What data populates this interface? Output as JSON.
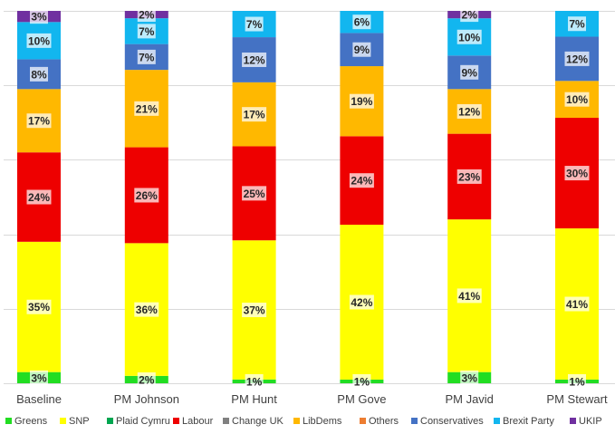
{
  "chart_data": {
    "type": "bar",
    "stacked": true,
    "title": "",
    "xlabel": "",
    "ylabel": "",
    "ylim": [
      0,
      100
    ],
    "grid": true,
    "legend_position": "bottom",
    "categories": [
      "Baseline",
      "PM Johnson",
      "PM Hunt",
      "PM Gove",
      "PM Javid",
      "PM Stewart"
    ],
    "series": [
      {
        "name": "Greens",
        "color": "#22DD22",
        "values": [
          3,
          2,
          1,
          1,
          3,
          1
        ]
      },
      {
        "name": "SNP",
        "color": "#FFFF00",
        "values": [
          35,
          36,
          37,
          42,
          41,
          41
        ]
      },
      {
        "name": "Plaid Cymru",
        "color": "#00A650",
        "values": [
          0,
          0,
          0,
          0,
          0,
          0
        ]
      },
      {
        "name": "Labour",
        "color": "#EE0000",
        "values": [
          24,
          26,
          25,
          24,
          23,
          30
        ]
      },
      {
        "name": "Change UK",
        "color": "#808080",
        "values": [
          0,
          0,
          0,
          0,
          0,
          0
        ]
      },
      {
        "name": "LibDems",
        "color": "#FFB800",
        "values": [
          17,
          21,
          17,
          19,
          12,
          10
        ]
      },
      {
        "name": "Others",
        "color": "#ED7D31",
        "values": [
          0,
          0,
          0,
          0,
          0,
          0
        ]
      },
      {
        "name": "Conservatives",
        "color": "#4472C4",
        "values": [
          8,
          7,
          12,
          9,
          9,
          12
        ]
      },
      {
        "name": "Brexit Party",
        "color": "#12B6EF",
        "values": [
          10,
          7,
          7,
          6,
          10,
          7
        ]
      },
      {
        "name": "UKIP",
        "color": "#7030A0",
        "values": [
          3,
          2,
          0,
          0,
          2,
          0
        ]
      }
    ],
    "data_labels": [
      [
        "3%",
        "35%",
        null,
        "24%",
        null,
        "17%",
        null,
        "8%",
        "10%",
        "3%"
      ],
      [
        "2%",
        "36%",
        null,
        "26%",
        null,
        "21%",
        null,
        "7%",
        "7%",
        "2%"
      ],
      [
        "1%",
        "37%",
        null,
        "25%",
        null,
        "17%",
        null,
        "12%",
        "7%",
        null
      ],
      [
        "1%",
        "42%",
        null,
        "24%",
        null,
        "19%",
        null,
        "9%",
        "6%",
        null
      ],
      [
        "3%",
        "41%",
        null,
        "23%",
        null,
        "12%",
        null,
        "9%",
        "10%",
        "2%"
      ],
      [
        "1%",
        "41%",
        null,
        "30%",
        null,
        "10%",
        null,
        "12%",
        "7%",
        null
      ]
    ]
  }
}
